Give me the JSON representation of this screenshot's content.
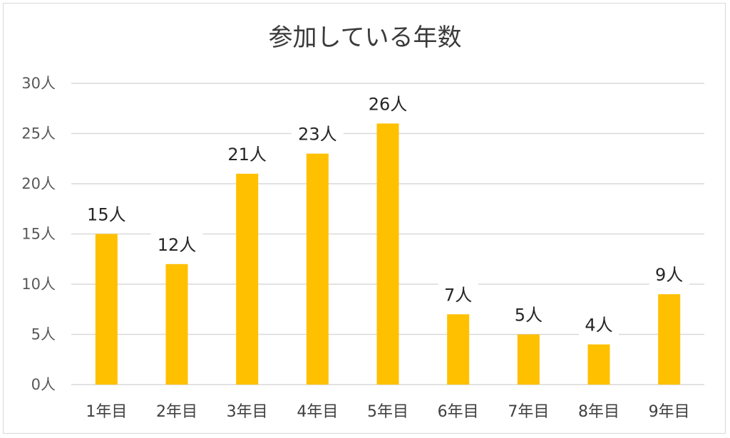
{
  "chart_data": {
    "type": "bar",
    "title": "参加している年数",
    "categories": [
      "1年目",
      "2年目",
      "3年目",
      "4年目",
      "5年目",
      "6年目",
      "7年目",
      "8年目",
      "9年目"
    ],
    "values": [
      15,
      12,
      21,
      23,
      26,
      7,
      5,
      4,
      9
    ],
    "data_labels": [
      "15人",
      "12人",
      "21人",
      "23人",
      "26人",
      "7人",
      "5人",
      "4人",
      "9人"
    ],
    "y_ticks": [
      0,
      5,
      10,
      15,
      20,
      25,
      30
    ],
    "y_tick_labels": [
      "0人",
      "5人",
      "10人",
      "15人",
      "20人",
      "25人",
      "30人"
    ],
    "ylim": [
      0,
      30
    ],
    "xlabel": "",
    "ylabel": "",
    "grid": true,
    "legend": "none",
    "bar_color": "#ffc000",
    "grid_color": "#d9d9d9"
  }
}
